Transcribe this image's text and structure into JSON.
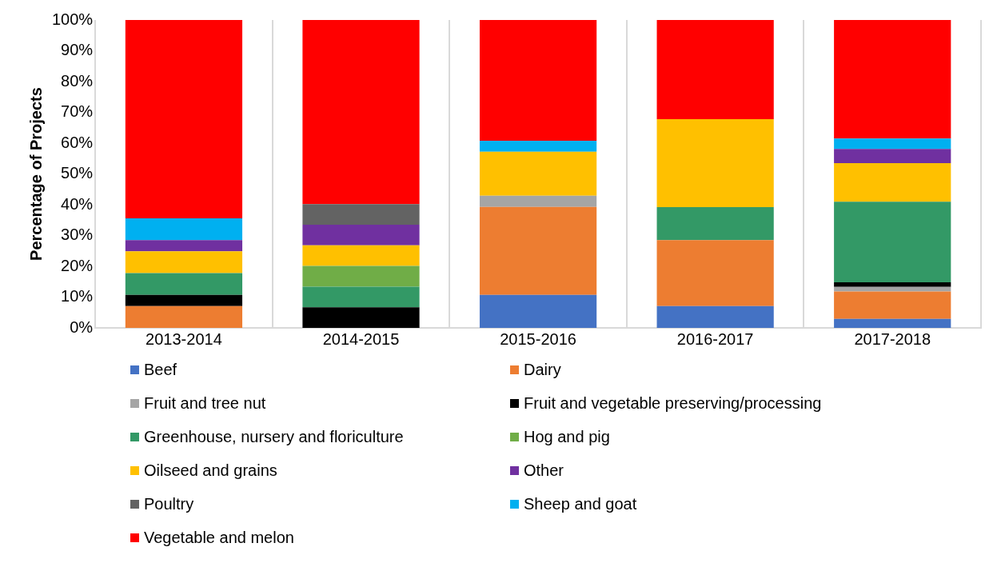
{
  "chart_data": {
    "type": "bar",
    "stacked": true,
    "ylabel": "Percentage of Projects",
    "categories": [
      "2013-2014",
      "2014-2015",
      "2015-2016",
      "2016-2017",
      "2017-2018"
    ],
    "series": [
      {
        "name": "Beef",
        "color": "#4472c4",
        "values": [
          0,
          0,
          10.7,
          7.1,
          2.9
        ]
      },
      {
        "name": "Dairy",
        "color": "#ed7d31",
        "values": [
          7.1,
          0,
          28.6,
          21.4,
          8.9
        ]
      },
      {
        "name": "Fruit and tree nut",
        "color": "#a5a5a5",
        "values": [
          0,
          0,
          3.6,
          0,
          1.5
        ]
      },
      {
        "name": "Fruit and vegetable preserving/processing",
        "color": "#000000",
        "values": [
          3.6,
          6.7,
          0,
          0,
          1.5
        ]
      },
      {
        "name": "Greenhouse, nursery and floriculture",
        "color": "#339966",
        "values": [
          7.1,
          6.7,
          0,
          10.7,
          26.2
        ]
      },
      {
        "name": "Hog and pig",
        "color": "#70ad47",
        "values": [
          0,
          6.7,
          0,
          0,
          0
        ]
      },
      {
        "name": "Oilseed and grains",
        "color": "#ffc000",
        "values": [
          7.1,
          6.7,
          14.3,
          28.6,
          12.5
        ]
      },
      {
        "name": "Other",
        "color": "#7030a0",
        "values": [
          3.6,
          6.7,
          0,
          0,
          4.6
        ]
      },
      {
        "name": "Poultry",
        "color": "#636363",
        "values": [
          0,
          6.7,
          0,
          0,
          0
        ]
      },
      {
        "name": "Sheep and goat",
        "color": "#00b0f0",
        "values": [
          7.1,
          0,
          3.6,
          0,
          3.4
        ]
      },
      {
        "name": "Vegetable and melon",
        "color": "#ff0000",
        "values": [
          64.4,
          60,
          39.2,
          32.2,
          38.5
        ]
      }
    ],
    "ylim": [
      0,
      100
    ],
    "yticks": [
      {
        "value": 0,
        "label": "0%"
      },
      {
        "value": 10,
        "label": "10%"
      },
      {
        "value": 20,
        "label": "20%"
      },
      {
        "value": 30,
        "label": "30%"
      },
      {
        "value": 40,
        "label": "40%"
      },
      {
        "value": 50,
        "label": "50%"
      },
      {
        "value": 60,
        "label": "60%"
      },
      {
        "value": 70,
        "label": "70%"
      },
      {
        "value": 80,
        "label": "80%"
      },
      {
        "value": 90,
        "label": "90%"
      },
      {
        "value": 100,
        "label": "100%"
      }
    ],
    "grid": "x",
    "legend": "bottom"
  }
}
